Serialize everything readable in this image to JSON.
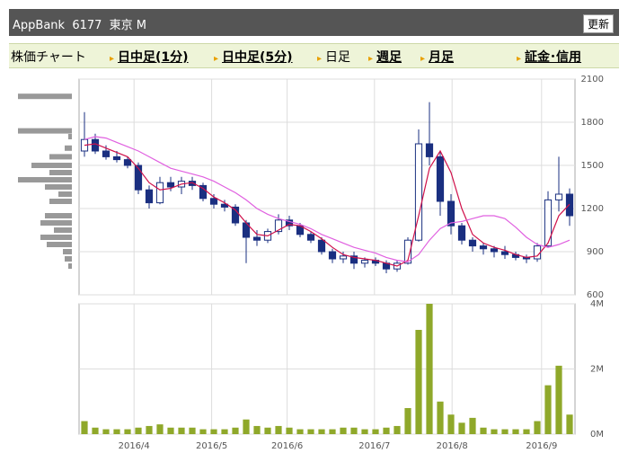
{
  "header": {
    "title": "AppBank  6177  東京 M",
    "button": "更新"
  },
  "tabs": [
    "株価チャート",
    "日中足(1分)",
    "日中足(5分)",
    "日足",
    "週足",
    "月足",
    "証金･信用"
  ],
  "chart_data": [
    {
      "type": "candlestick",
      "xlim": [
        0,
        46
      ],
      "xticks": [
        {
          "value": 5.1,
          "label": "2016/4"
        },
        {
          "value": 12.3,
          "label": "2016/5"
        },
        {
          "value": 19.3,
          "label": "2016/6"
        },
        {
          "value": 27.4,
          "label": "2016/7"
        },
        {
          "value": 34.6,
          "label": "2016/8"
        },
        {
          "value": 42.9,
          "label": "2016/9"
        }
      ],
      "ylim": [
        600,
        2100
      ],
      "yticks": [
        600,
        900,
        1200,
        1500,
        1800,
        2100
      ],
      "grid": true,
      "up_color": "#ffffff",
      "down_color": "#1a2f80",
      "open": [
        1600,
        1680,
        1600,
        1560,
        1540,
        1500,
        1330,
        1240,
        1380,
        1350,
        1390,
        1360,
        1270,
        1230,
        1210,
        1100,
        1000,
        980,
        1040,
        1120,
        1080,
        1020,
        980,
        900,
        850,
        870,
        820,
        840,
        820,
        780,
        820,
        980,
        1650,
        1560,
        1250,
        1080,
        980,
        940,
        920,
        900,
        880,
        860,
        850,
        940,
        1260,
        1300
      ],
      "high": [
        1870,
        1720,
        1640,
        1600,
        1560,
        1520,
        1360,
        1420,
        1420,
        1420,
        1420,
        1380,
        1300,
        1260,
        1230,
        1120,
        1050,
        1060,
        1160,
        1150,
        1100,
        1040,
        1000,
        920,
        900,
        900,
        860,
        860,
        840,
        840,
        1000,
        1750,
        1940,
        1600,
        1300,
        1100,
        1000,
        960,
        940,
        940,
        900,
        880,
        960,
        1320,
        1560,
        1340
      ],
      "low": [
        1560,
        1580,
        1540,
        1520,
        1480,
        1300,
        1200,
        1230,
        1320,
        1300,
        1330,
        1250,
        1200,
        1180,
        1080,
        820,
        940,
        960,
        1020,
        1050,
        1000,
        960,
        880,
        820,
        820,
        780,
        790,
        800,
        750,
        760,
        810,
        970,
        1500,
        1150,
        1020,
        950,
        900,
        880,
        860,
        850,
        840,
        820,
        830,
        930,
        1180,
        1080
      ],
      "close": [
        1680,
        1600,
        1560,
        1540,
        1500,
        1330,
        1240,
        1380,
        1350,
        1390,
        1360,
        1270,
        1230,
        1210,
        1100,
        1000,
        980,
        1040,
        1120,
        1080,
        1020,
        980,
        900,
        850,
        870,
        820,
        840,
        820,
        780,
        820,
        980,
        1650,
        1560,
        1250,
        1080,
        980,
        940,
        920,
        900,
        880,
        860,
        850,
        940,
        1260,
        1300,
        1150
      ],
      "series": [
        {
          "color": "#d0104a",
          "values": [
            1640,
            1650,
            1620,
            1590,
            1560,
            1480,
            1380,
            1330,
            1340,
            1370,
            1380,
            1340,
            1280,
            1240,
            1190,
            1100,
            1020,
            1010,
            1050,
            1090,
            1080,
            1040,
            990,
            930,
            880,
            860,
            850,
            840,
            820,
            800,
            840,
            1150,
            1480,
            1600,
            1450,
            1200,
            1020,
            960,
            930,
            910,
            880,
            860,
            870,
            960,
            1150,
            1230
          ]
        },
        {
          "color": "#e060e0",
          "values": [
            1680,
            1700,
            1690,
            1660,
            1630,
            1600,
            1560,
            1520,
            1480,
            1460,
            1440,
            1420,
            1390,
            1350,
            1310,
            1260,
            1200,
            1160,
            1130,
            1110,
            1090,
            1060,
            1020,
            990,
            960,
            930,
            910,
            890,
            860,
            840,
            830,
            880,
            980,
            1060,
            1100,
            1110,
            1130,
            1150,
            1150,
            1130,
            1070,
            1000,
            950,
            930,
            950,
            980
          ]
        }
      ],
      "price_levels": [
        1980,
        1740,
        1700,
        1620,
        1560,
        1500,
        1450,
        1400,
        1350,
        1300,
        1250,
        1150,
        1100,
        1050,
        1000,
        950,
        900,
        850,
        800
      ],
      "price_volume": [
        60,
        60,
        4,
        8,
        25,
        45,
        25,
        60,
        30,
        15,
        25,
        30,
        35,
        20,
        35,
        28,
        10,
        8,
        4
      ],
      "price_volume_color": "#999999"
    },
    {
      "type": "bar",
      "xlim": [
        0,
        46
      ],
      "ylim": [
        0,
        4
      ],
      "yticks": [
        {
          "value": 0,
          "label": "0M"
        },
        {
          "value": 2,
          "label": "2M"
        },
        {
          "value": 4,
          "label": "4M"
        }
      ],
      "color": "#8fa82a",
      "values": [
        0.4,
        0.2,
        0.15,
        0.15,
        0.15,
        0.2,
        0.25,
        0.3,
        0.2,
        0.2,
        0.2,
        0.15,
        0.15,
        0.15,
        0.2,
        0.45,
        0.25,
        0.2,
        0.25,
        0.2,
        0.15,
        0.15,
        0.15,
        0.15,
        0.2,
        0.2,
        0.15,
        0.15,
        0.2,
        0.25,
        0.8,
        3.2,
        4.0,
        1.0,
        0.6,
        0.35,
        0.5,
        0.2,
        0.15,
        0.15,
        0.15,
        0.15,
        0.4,
        1.5,
        2.1,
        0.6
      ]
    }
  ]
}
